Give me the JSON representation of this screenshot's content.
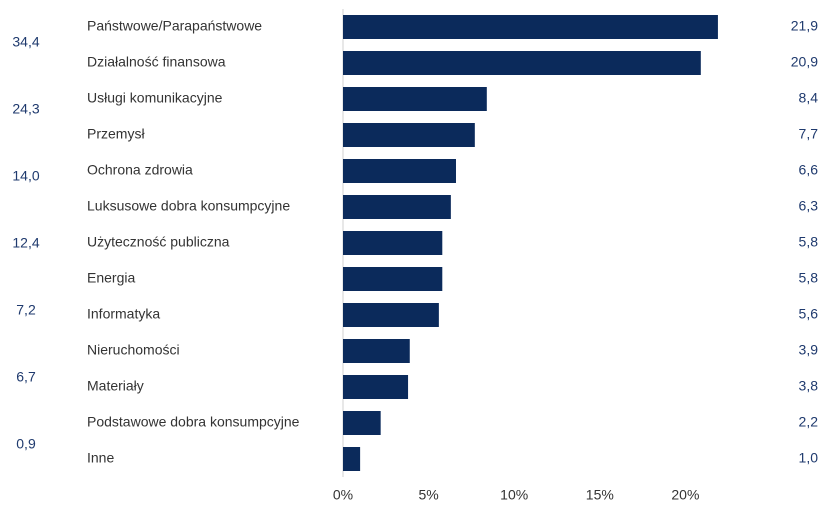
{
  "chart_data": {
    "type": "bar",
    "orientation": "horizontal",
    "categories": [
      "Państwowe/Parapaństwowe",
      "Działalność finansowa",
      "Usługi komunikacyjne",
      "Przemysł",
      "Ochrona zdrowia",
      "Luksusowe dobra konsumpcyjne",
      "Użyteczność publiczna",
      "Energia",
      "Informatyka",
      "Nieruchomości",
      "Materiały",
      "Podstawowe dobra konsumpcyjne",
      "Inne"
    ],
    "values": [
      21.9,
      20.9,
      8.4,
      7.7,
      6.6,
      6.3,
      5.8,
      5.8,
      5.6,
      3.9,
      3.8,
      2.2,
      1.0
    ],
    "value_labels": [
      "21,9",
      "20,9",
      "8,4",
      "7,7",
      "6,6",
      "6,3",
      "5,8",
      "5,8",
      "5,6",
      "3,9",
      "3,8",
      "2,2",
      "1,0"
    ],
    "side_labels": [
      "34,4",
      "24,3",
      "14,0",
      "12,4",
      "7,2",
      "6,7",
      "0,9"
    ],
    "color": "#0b2a5b",
    "xlim": [
      0,
      25
    ],
    "xticks": [
      {
        "value": 0,
        "label": "0%"
      },
      {
        "value": 5,
        "label": "5%"
      },
      {
        "value": 10,
        "label": "10%"
      },
      {
        "value": 15,
        "label": "15%"
      },
      {
        "value": 20,
        "label": "20%"
      }
    ]
  }
}
